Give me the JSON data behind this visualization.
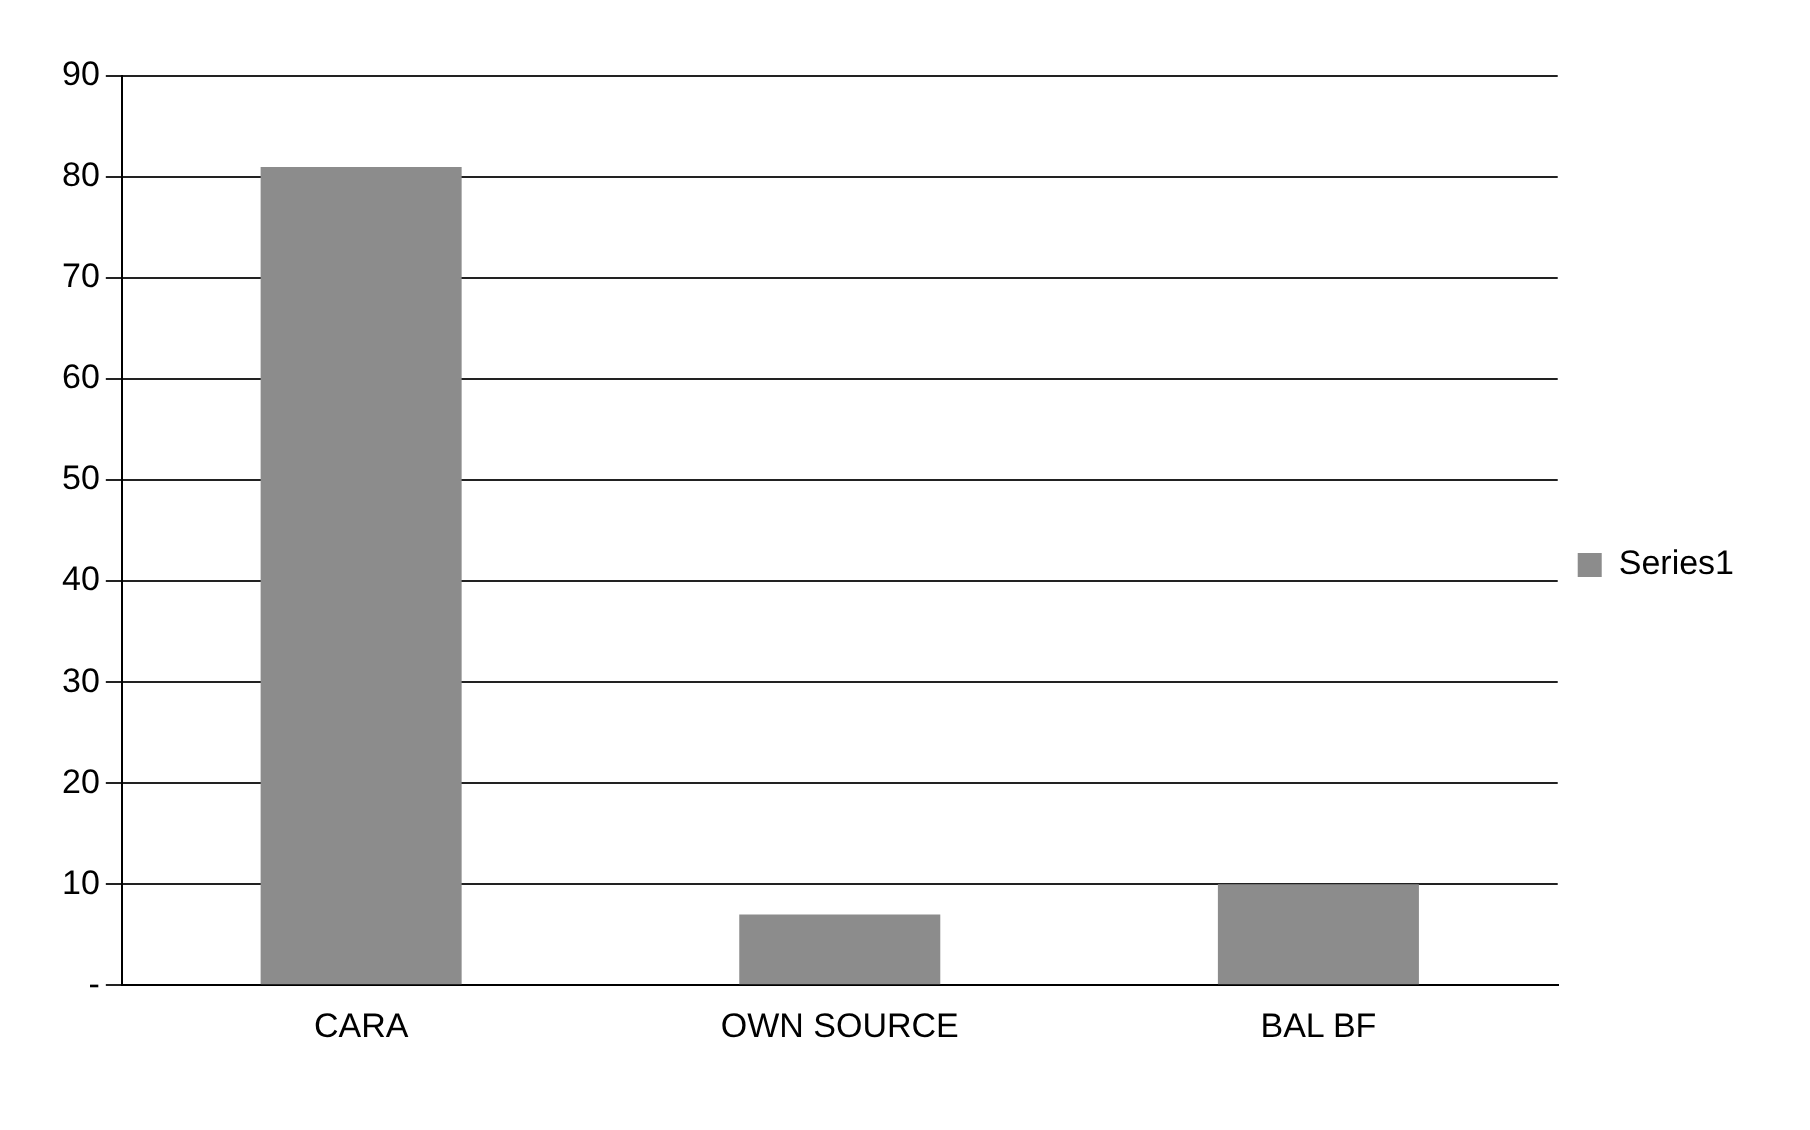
{
  "chart_data": {
    "type": "bar",
    "categories": [
      "CARA",
      "OWN SOURCE",
      "BAL BF"
    ],
    "series": [
      {
        "name": "Series1",
        "color": "#8c8c8c",
        "values": [
          81,
          7,
          10
        ]
      }
    ],
    "ylim": [
      0,
      90
    ],
    "yticks": [
      {
        "value": 0,
        "label": "-"
      },
      10,
      20,
      30,
      40,
      50,
      60,
      70,
      80,
      90
    ],
    "grid": "y",
    "legend": "right"
  }
}
